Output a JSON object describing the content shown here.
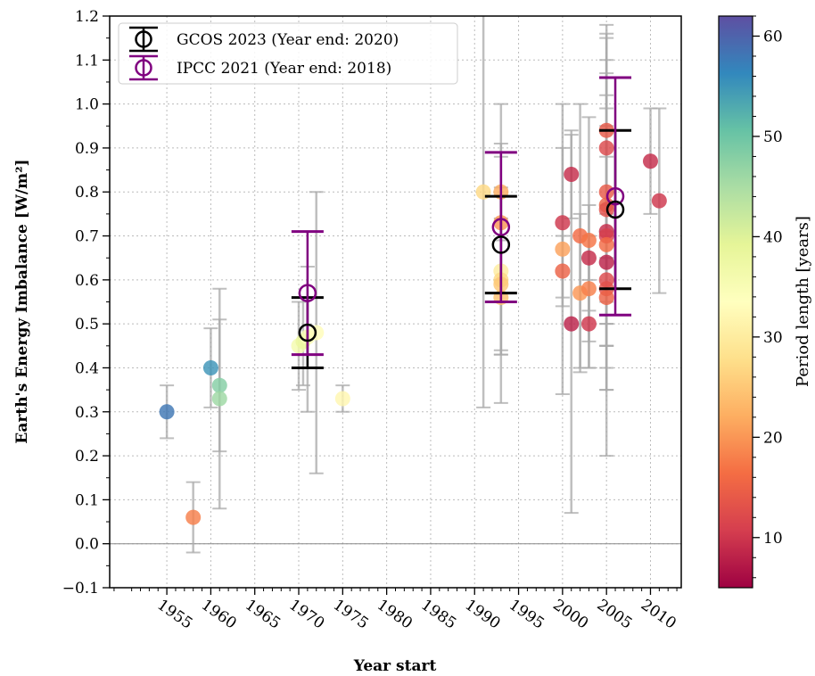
{
  "chart_data": {
    "type": "scatter",
    "xlabel": "Year start",
    "ylabel": "Earth's Energy Imbalance [W/m²]",
    "xlim": [
      1948.5,
      2013.5
    ],
    "ylim": [
      -0.1,
      1.2
    ],
    "x_ticks": [
      1955,
      1960,
      1965,
      1970,
      1975,
      1980,
      1985,
      1990,
      1995,
      2000,
      2005,
      2010
    ],
    "y_ticks": [
      -0.1,
      0.0,
      0.1,
      0.2,
      0.3,
      0.4,
      0.5,
      0.6,
      0.7,
      0.8,
      0.9,
      1.0,
      1.1,
      1.2
    ],
    "y_tick_labels": [
      "−0.1",
      "0.0",
      "0.1",
      "0.2",
      "0.3",
      "0.4",
      "0.5",
      "0.6",
      "0.7",
      "0.8",
      "0.9",
      "1.0",
      "1.1",
      "1.2"
    ],
    "grid": true,
    "zero_line": 0.0,
    "colormap": "Spectral",
    "colorbar": {
      "label": "Period length [years]",
      "range": [
        5,
        62
      ],
      "ticks": [
        10,
        20,
        30,
        40,
        50,
        60
      ]
    },
    "legend": {
      "placement": "top-left",
      "entries": [
        {
          "label": "GCOS 2023 (Year end: 2020)",
          "color": "#000000"
        },
        {
          "label": "IPCC 2021 (Year end: 2018)",
          "color": "#800080"
        }
      ]
    },
    "points": [
      {
        "x": 1955,
        "y": 0.3,
        "period": 58,
        "low": 0.24,
        "high": 0.36
      },
      {
        "x": 1958,
        "y": 0.06,
        "period": 18,
        "low": -0.02,
        "high": 0.14
      },
      {
        "x": 1960,
        "y": 0.4,
        "period": 55,
        "low": 0.31,
        "high": 0.49
      },
      {
        "x": 1961,
        "y": 0.36,
        "period": 48,
        "low": 0.21,
        "high": 0.51
      },
      {
        "x": 1961,
        "y": 0.33,
        "period": 46,
        "low": 0.08,
        "high": 0.58
      },
      {
        "x": 1970,
        "y": 0.45,
        "period": 36,
        "low": 0.35,
        "high": 0.55
      },
      {
        "x": 1970.5,
        "y": 0.46,
        "period": 38,
        "low": 0.36,
        "high": 0.56
      },
      {
        "x": 1971,
        "y": 0.47,
        "period": 35,
        "low": 0.3,
        "high": 0.63
      },
      {
        "x": 1972,
        "y": 0.48,
        "period": 33,
        "low": 0.16,
        "high": 0.8
      },
      {
        "x": 1975,
        "y": 0.33,
        "period": 32,
        "low": 0.3,
        "high": 0.36
      },
      {
        "x": 1991,
        "y": 0.8,
        "period": 27,
        "low": 0.31,
        "high": 1.29
      },
      {
        "x": 1993,
        "y": 0.8,
        "period": 22,
        "low": 0.6,
        "high": 1.0
      },
      {
        "x": 1993,
        "y": 0.73,
        "period": 20,
        "low": 0.55,
        "high": 0.91
      },
      {
        "x": 1993,
        "y": 0.62,
        "period": 30,
        "low": 0.43,
        "high": 0.81
      },
      {
        "x": 1993,
        "y": 0.6,
        "period": 27,
        "low": 0.32,
        "high": 0.88
      },
      {
        "x": 1993,
        "y": 0.59,
        "period": 25,
        "low": 0.44,
        "high": 0.74
      },
      {
        "x": 1993,
        "y": 0.56,
        "period": 24,
        "low": 0.43,
        "high": 0.69
      },
      {
        "x": 2000,
        "y": 0.73,
        "period": 10,
        "low": 0.56,
        "high": 0.9
      },
      {
        "x": 2000,
        "y": 0.67,
        "period": 21,
        "low": 0.34,
        "high": 1.0
      },
      {
        "x": 2000,
        "y": 0.62,
        "period": 15,
        "low": 0.54,
        "high": 0.7
      },
      {
        "x": 2001,
        "y": 0.84,
        "period": 9,
        "low": 0.74,
        "high": 0.94
      },
      {
        "x": 2001,
        "y": 0.5,
        "period": 8,
        "low": 0.07,
        "high": 0.93
      },
      {
        "x": 2002,
        "y": 0.7,
        "period": 16,
        "low": 0.4,
        "high": 1.0
      },
      {
        "x": 2002,
        "y": 0.57,
        "period": 20,
        "low": 0.39,
        "high": 0.75
      },
      {
        "x": 2003,
        "y": 0.69,
        "period": 17,
        "low": 0.4,
        "high": 0.97
      },
      {
        "x": 2003,
        "y": 0.65,
        "period": 9,
        "low": 0.53,
        "high": 0.77
      },
      {
        "x": 2003,
        "y": 0.58,
        "period": 18,
        "low": 0.46,
        "high": 0.7
      },
      {
        "x": 2003,
        "y": 0.5,
        "period": 10,
        "low": 0.4,
        "high": 0.6
      },
      {
        "x": 2005,
        "y": 0.94,
        "period": 14,
        "low": 0.7,
        "high": 1.18
      },
      {
        "x": 2005,
        "y": 0.9,
        "period": 12,
        "low": 0.65,
        "high": 1.15
      },
      {
        "x": 2005,
        "y": 0.8,
        "period": 14,
        "low": 0.5,
        "high": 1.1
      },
      {
        "x": 2005,
        "y": 0.77,
        "period": 15,
        "low": 0.55,
        "high": 0.99
      },
      {
        "x": 2005,
        "y": 0.76,
        "period": 13,
        "low": 0.5,
        "high": 1.02
      },
      {
        "x": 2005,
        "y": 0.71,
        "period": 9,
        "low": 0.35,
        "high": 1.07
      },
      {
        "x": 2005,
        "y": 0.7,
        "period": 11,
        "low": 0.45,
        "high": 0.95
      },
      {
        "x": 2005,
        "y": 0.68,
        "period": 16,
        "low": 0.2,
        "high": 1.16
      },
      {
        "x": 2005,
        "y": 0.64,
        "period": 8,
        "low": 0.4,
        "high": 0.88
      },
      {
        "x": 2005,
        "y": 0.6,
        "period": 12,
        "low": 0.45,
        "high": 0.75
      },
      {
        "x": 2005,
        "y": 0.58,
        "period": 13,
        "low": 0.45,
        "high": 0.71
      },
      {
        "x": 2005,
        "y": 0.56,
        "period": 15,
        "low": 0.35,
        "high": 0.77
      },
      {
        "x": 2010,
        "y": 0.87,
        "period": 9,
        "low": 0.75,
        "high": 0.99
      },
      {
        "x": 2011,
        "y": 0.78,
        "period": 10,
        "low": 0.57,
        "high": 0.99
      }
    ],
    "series": [
      {
        "name": "GCOS 2023 (Year end: 2020)",
        "color": "#000000",
        "points": [
          {
            "x": 1971,
            "y": 0.48,
            "low": 0.4,
            "high": 0.56
          },
          {
            "x": 1993,
            "y": 0.68,
            "low": 0.57,
            "high": 0.79
          },
          {
            "x": 2006,
            "y": 0.76,
            "low": 0.58,
            "high": 0.94
          }
        ]
      },
      {
        "name": "IPCC 2021 (Year end: 2018)",
        "color": "#800080",
        "points": [
          {
            "x": 1971,
            "y": 0.57,
            "low": 0.43,
            "high": 0.71
          },
          {
            "x": 1993,
            "y": 0.72,
            "low": 0.55,
            "high": 0.89
          },
          {
            "x": 2006,
            "y": 0.79,
            "low": 0.52,
            "high": 1.06
          }
        ]
      }
    ]
  }
}
